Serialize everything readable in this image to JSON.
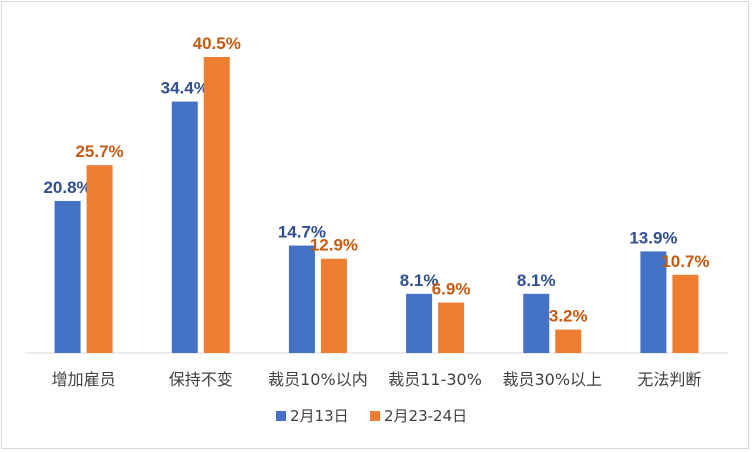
{
  "chart_data": {
    "type": "bar",
    "title": "",
    "xlabel": "",
    "ylabel": "",
    "categories": [
      "增加雇员",
      "保持不变",
      "裁员10%以内",
      "裁员11-30%",
      "裁员30%以上",
      "无法判断"
    ],
    "series": [
      {
        "name": "2月13日",
        "values": [
          20.8,
          34.4,
          14.7,
          8.1,
          8.1,
          13.9
        ],
        "labels": [
          "20.8%",
          "34.4%",
          "14.7%",
          "8.1%",
          "8.1%",
          "13.9%"
        ],
        "color": "#4472c4"
      },
      {
        "name": "2月23-24日",
        "values": [
          25.7,
          40.5,
          12.9,
          6.9,
          3.2,
          10.7
        ],
        "labels": [
          "25.7%",
          "40.5%",
          "12.9%",
          "6.9%",
          "3.2%",
          "10.7%"
        ],
        "color": "#ed7d31"
      }
    ],
    "ylim": [
      0,
      45
    ],
    "grid": false,
    "legend_position": "bottom"
  },
  "colors": {
    "series1_label": "#2f4f8f",
    "series2_label": "#c55a11",
    "axis": "#d9d9d9"
  }
}
